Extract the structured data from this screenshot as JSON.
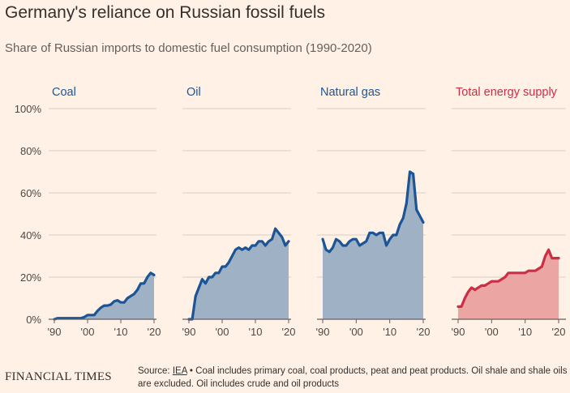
{
  "title": "Germany's reliance on Russian fossil fuels",
  "subtitle": "Share of Russian imports to domestic fuel consumption (1990-2020)",
  "footer": {
    "publisher": "FINANCIAL TIMES",
    "source_prefix": "Source: ",
    "source_link": "IEA",
    "source_note": " • Coal includes primary coal, coal products, peat and peat products. Oil shale and shale oils are excluded. Oil includes crude and oil products"
  },
  "colors": {
    "background": "#fff1e5",
    "grid": "#e0d6cd",
    "blue_line": "#1c5596",
    "blue_fill": "#9fb1c5",
    "red_line": "#cc2e45",
    "red_fill": "#eba5a3",
    "label_blue": "#1c5596",
    "label_red": "#cc2e45",
    "axis_text": "#4d4845"
  },
  "chart_data": {
    "type": "area",
    "y_tick_labels": [
      "0%",
      "20%",
      "40%",
      "60%",
      "80%",
      "100%"
    ],
    "y_ticks": [
      0,
      20,
      40,
      60,
      80,
      100
    ],
    "ylim": [
      0,
      100
    ],
    "xlim": [
      1990,
      2020
    ],
    "x_ticks": [
      1990,
      2000,
      2010,
      2020
    ],
    "x_tick_labels": [
      "'90",
      "'00",
      "'10",
      "'20"
    ],
    "grid": true,
    "x": [
      1990,
      1991,
      1992,
      1993,
      1994,
      1995,
      1996,
      1997,
      1998,
      1999,
      2000,
      2001,
      2002,
      2003,
      2004,
      2005,
      2006,
      2007,
      2008,
      2009,
      2010,
      2011,
      2012,
      2013,
      2014,
      2015,
      2016,
      2017,
      2018,
      2019,
      2020
    ],
    "panels": [
      {
        "name": "Coal",
        "color": "blue",
        "values": [
          0,
          0.5,
          0.5,
          0.5,
          0.5,
          0.5,
          0.5,
          0.5,
          0.5,
          1,
          2,
          2,
          2,
          4,
          5.5,
          6.5,
          6.5,
          7,
          8.5,
          9,
          8,
          8,
          10,
          11,
          12,
          14,
          17,
          17,
          20,
          22,
          21
        ]
      },
      {
        "name": "Oil",
        "color": "blue",
        "values": [
          0,
          0,
          11,
          15,
          19,
          17,
          20,
          20,
          22,
          22,
          25,
          25,
          27,
          30,
          33,
          34,
          33,
          34,
          33,
          35,
          35,
          37,
          37,
          35,
          37,
          38,
          43,
          41,
          39,
          35,
          37
        ]
      },
      {
        "name": "Natural gas",
        "color": "blue",
        "values": [
          38,
          33,
          32,
          34,
          38,
          37,
          35,
          35,
          37,
          38,
          38,
          35,
          36,
          37,
          41,
          41,
          40,
          41,
          41,
          35,
          38,
          40,
          40,
          45,
          48,
          55,
          70,
          69,
          52,
          49,
          46
        ]
      },
      {
        "name": "Total energy supply",
        "color": "red",
        "values": [
          6,
          6,
          10,
          13,
          15,
          14,
          15,
          16,
          16,
          17,
          18,
          18,
          18,
          19,
          20,
          22,
          22,
          22,
          22,
          22,
          22,
          23,
          23,
          23,
          24,
          25,
          30,
          33,
          29,
          29,
          29
        ]
      }
    ]
  }
}
